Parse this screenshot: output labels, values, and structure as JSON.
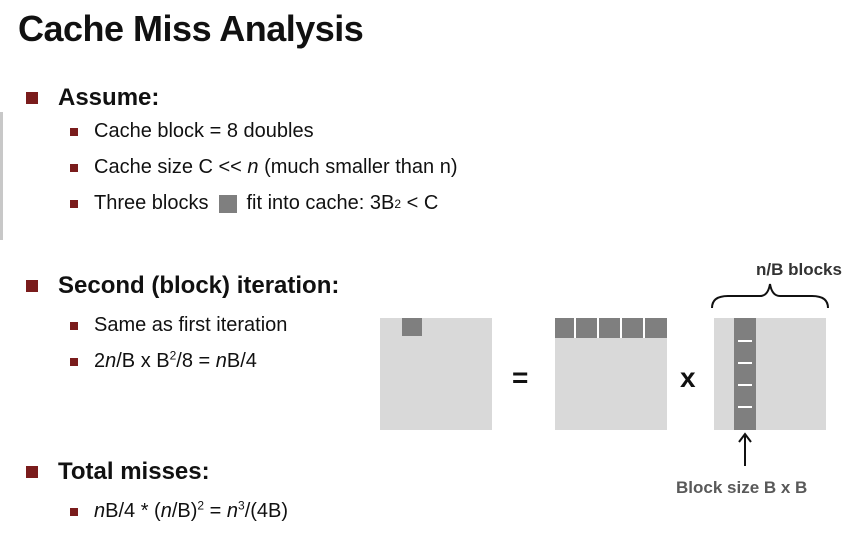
{
  "title": "Cache Miss Analysis",
  "sections": {
    "assume": {
      "label": "Assume:",
      "items": [
        "Cache block = 8 doubles",
        "Cache size C << n (much smaller than n)",
        "Three blocks",
        "fit into cache: 3B",
        "2",
        " < C"
      ]
    },
    "second": {
      "label": "Second (block) iteration:",
      "items": [
        "Same as first iteration",
        "2n/B x B²/8 = nB/4"
      ]
    },
    "total": {
      "label": "Total misses:",
      "items": [
        "nB/4 * (n/B)² = n³/(4B)"
      ]
    }
  },
  "diagram": {
    "equals": "=",
    "times": "x",
    "brace_label": "n/B blocks",
    "block_size_label": "Block size B x B"
  },
  "colors": {
    "bullet": "#7a1c1c",
    "matrix": "#d9d9d9",
    "block": "#7f7f7f"
  }
}
